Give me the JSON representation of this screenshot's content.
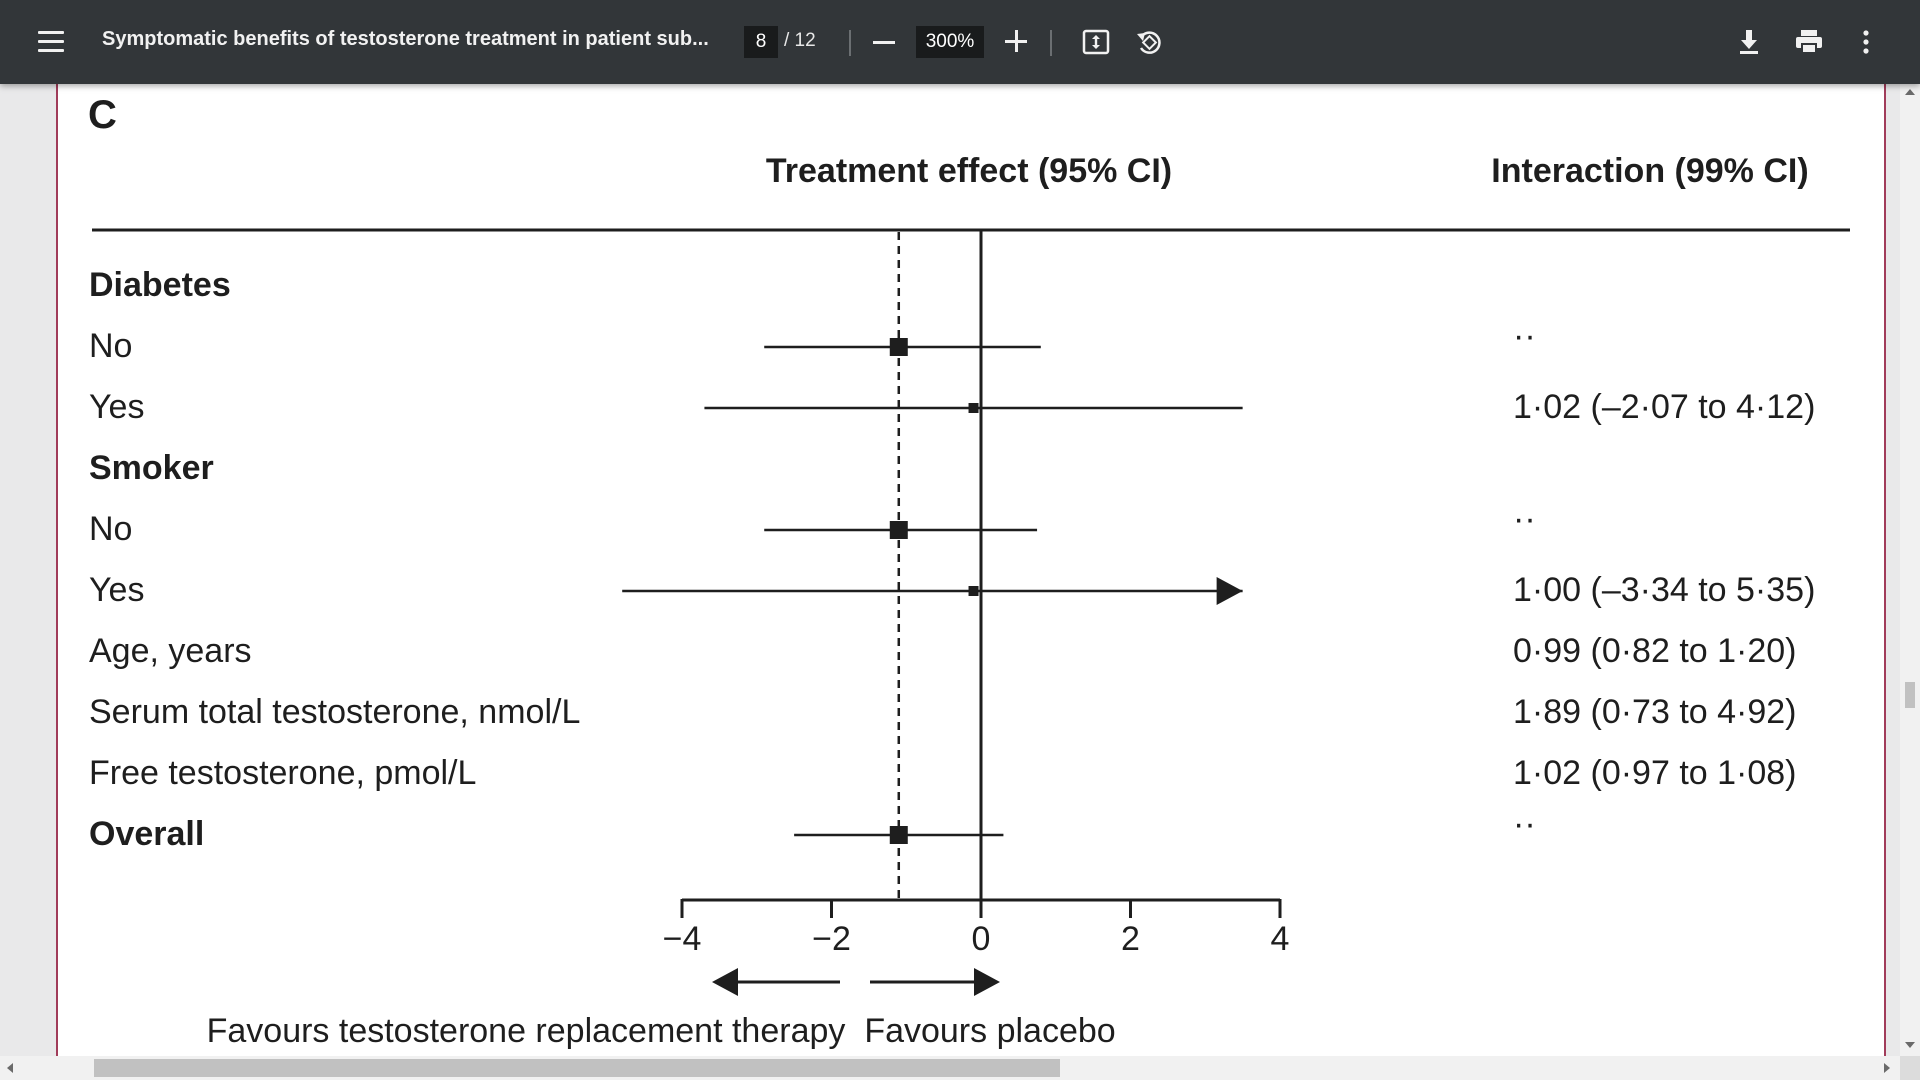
{
  "toolbar": {
    "title": "Symptomatic benefits of testosterone treatment in patient sub...",
    "page_current": "8",
    "page_total": "/ 12",
    "zoom": "300%",
    "menu_icon": "hamburger-menu-icon",
    "icons": [
      "fit-page-icon",
      "rotate-icon",
      "download-icon",
      "print-icon",
      "more-options-icon"
    ]
  },
  "figure": {
    "panel_label": "C",
    "col_effect_header": "Treatment effect (95% CI)",
    "col_interaction_header": "Interaction (99% CI)",
    "favours_left": "Favours testosterone replacement therapy",
    "favours_right": "Favours placebo"
  },
  "chart_data": {
    "type": "forest",
    "title": "",
    "xlabel": "",
    "xlim": [
      -4,
      4
    ],
    "x_ticks": [
      "−4",
      "−2",
      "0",
      "2",
      "4"
    ],
    "tick_values": [
      -4,
      -2,
      0,
      2,
      4
    ],
    "reference_line": 0,
    "overall_line": -1.1,
    "rows": [
      {
        "label": "Diabetes",
        "bold": true,
        "estimate": null,
        "lower": null,
        "upper": null,
        "interaction": ""
      },
      {
        "label": "No",
        "bold": false,
        "estimate": -1.1,
        "lower": -2.9,
        "upper": 0.8,
        "interaction": "··"
      },
      {
        "label": "Yes",
        "bold": false,
        "estimate": -0.1,
        "lower": -3.7,
        "upper": 3.5,
        "interaction": "1·02 (–2·07 to 4·12)"
      },
      {
        "label": "Smoker",
        "bold": true,
        "estimate": null,
        "lower": null,
        "upper": null,
        "interaction": ""
      },
      {
        "label": "No",
        "bold": false,
        "estimate": -1.1,
        "lower": -2.9,
        "upper": 0.75,
        "interaction": "··"
      },
      {
        "label": "Yes",
        "bold": false,
        "estimate": -0.1,
        "lower": -4.8,
        "upper": 3.5,
        "arrow_right": true,
        "interaction": "1·00 (–3·34 to 5·35)"
      },
      {
        "label": "Age, years",
        "bold": false,
        "estimate": null,
        "lower": null,
        "upper": null,
        "interaction": "0·99 (0·82 to 1·20)"
      },
      {
        "label": "Serum total testosterone, nmol/L",
        "bold": false,
        "estimate": null,
        "lower": null,
        "upper": null,
        "interaction": "1·89 (0·73 to 4·92)"
      },
      {
        "label": "Free testosterone, pmol/L",
        "bold": false,
        "estimate": null,
        "lower": null,
        "upper": null,
        "interaction": "1·02 (0·97 to 1·08)"
      },
      {
        "label": "Overall",
        "bold": true,
        "estimate": -1.1,
        "lower": -2.5,
        "upper": 0.3,
        "interaction": "··"
      }
    ]
  }
}
